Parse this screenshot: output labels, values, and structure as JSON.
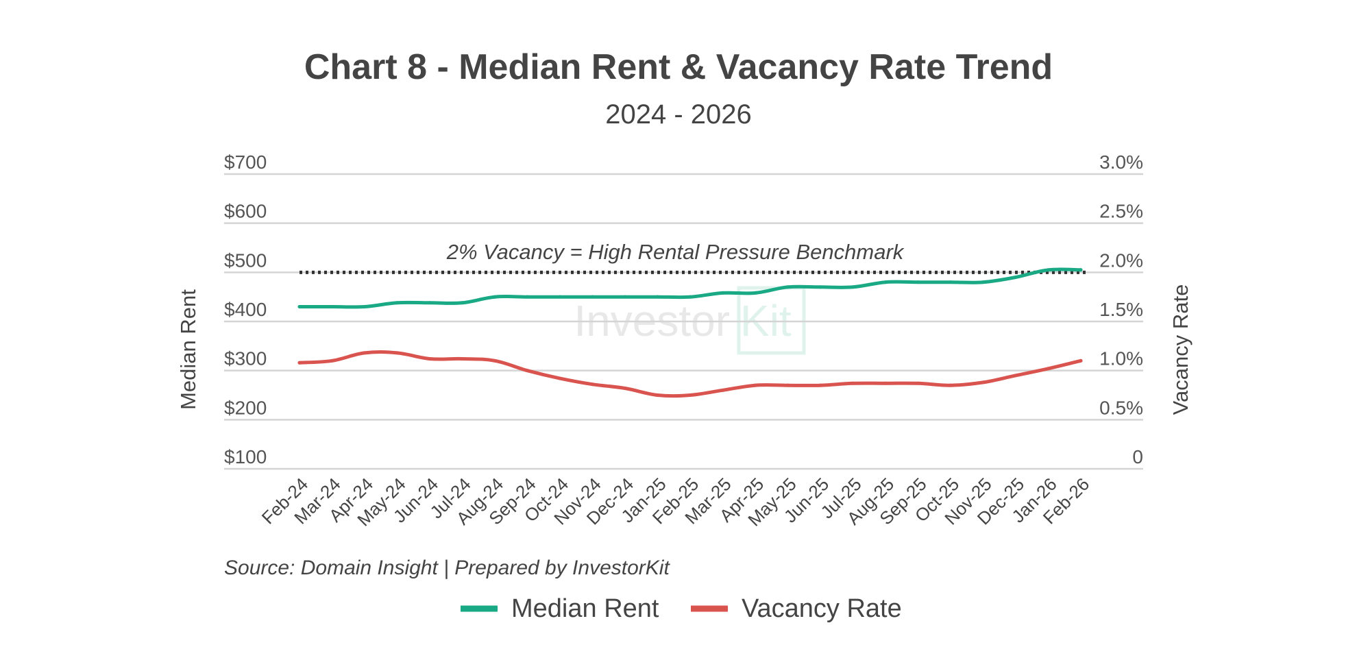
{
  "chart_data": {
    "type": "line",
    "title": "Chart 8 - Median Rent & Vacancy Rate Trend",
    "subtitle": "2024 - 2026",
    "x": [
      "Feb-24",
      "Mar-24",
      "Apr-24",
      "May-24",
      "Jun-24",
      "Jul-24",
      "Aug-24",
      "Sep-24",
      "Oct-24",
      "Nov-24",
      "Dec-24",
      "Jan-25",
      "Feb-25",
      "Mar-25",
      "Apr-25",
      "May-25",
      "Jun-25",
      "Jul-25",
      "Aug-25",
      "Sep-25",
      "Oct-25",
      "Nov-25",
      "Dec-25",
      "Jan-26",
      "Feb-26"
    ],
    "y_left": {
      "label": "Median Rent",
      "ylim": [
        100,
        700
      ],
      "ticks": [
        "$100",
        "$200",
        "$300",
        "$400",
        "$500",
        "$600",
        "$700"
      ],
      "tick_values": [
        100,
        200,
        300,
        400,
        500,
        600,
        700
      ]
    },
    "y_right": {
      "label": "Vacancy Rate",
      "ylim": [
        0,
        3.0
      ],
      "ticks": [
        "0",
        "0.5%",
        "1.0%",
        "1.5%",
        "2.0%",
        "2.5%",
        "3.0%"
      ],
      "tick_values": [
        0,
        0.5,
        1.0,
        1.5,
        2.0,
        2.5,
        3.0
      ]
    },
    "series": [
      {
        "name": "Median Rent",
        "axis": "left",
        "color": "#1aa985",
        "values": [
          430,
          430,
          430,
          438,
          438,
          438,
          450,
          450,
          450,
          450,
          450,
          450,
          450,
          458,
          458,
          470,
          470,
          470,
          480,
          480,
          480,
          480,
          490,
          505,
          505
        ]
      },
      {
        "name": "Vacancy Rate",
        "axis": "right",
        "color": "#d9534f",
        "values": [
          1.08,
          1.1,
          1.18,
          1.18,
          1.12,
          1.12,
          1.1,
          1.0,
          0.92,
          0.86,
          0.82,
          0.75,
          0.75,
          0.8,
          0.85,
          0.85,
          0.85,
          0.87,
          0.87,
          0.87,
          0.85,
          0.88,
          0.95,
          1.02,
          1.1
        ]
      }
    ],
    "benchmark": {
      "axis": "right",
      "value": 2.0,
      "label": "2% Vacancy = High Rental Pressure Benchmark",
      "color": "#333333"
    },
    "source": "Source: Domain Insight | Prepared by InvestorKit",
    "legend": "bottom-center",
    "grid": true
  },
  "watermark": {
    "part1": "Investor",
    "part2": "Kit"
  }
}
